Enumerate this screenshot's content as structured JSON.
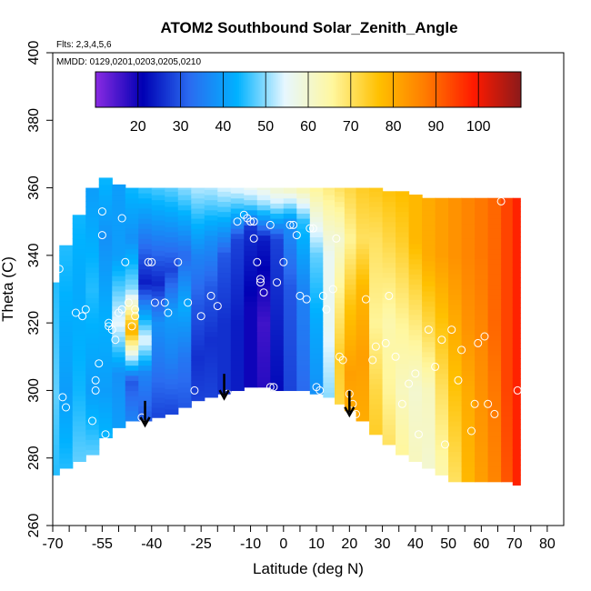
{
  "chart_data": {
    "type": "heatmap",
    "title": "ATOM2 Southbound Solar_Zenith_Angle",
    "notes": [
      "Flts: 2,3,4,5,6",
      "MMDD: 0129,0201,0203,0205,0210"
    ],
    "xlabel": "Latitude (deg N)",
    "ylabel": "Theta (C)",
    "xlim": [
      -70,
      85
    ],
    "ylim": [
      260,
      400
    ],
    "x_ticks_labeled": [
      -70,
      -55,
      -40,
      -25,
      -10,
      0,
      10,
      20,
      30,
      40,
      50,
      60,
      70,
      80
    ],
    "x_ticks_minor": [
      -65,
      -60,
      -50,
      -45,
      -35,
      -30,
      -20,
      -15,
      -5,
      5,
      15,
      25,
      35,
      45,
      55,
      65,
      75
    ],
    "y_ticks": [
      260,
      280,
      300,
      320,
      340,
      360,
      380,
      400
    ],
    "colorbar": {
      "range": [
        10,
        110
      ],
      "ticks": [
        20,
        30,
        40,
        50,
        60,
        70,
        80,
        90,
        100
      ],
      "colors": [
        "#8a2be2",
        "#0000b4",
        "#2a6cf0",
        "#00b2ff",
        "#e6f7ff",
        "#fff7a0",
        "#ffc000",
        "#ff7a00",
        "#ff1a00",
        "#8b1a1a"
      ]
    },
    "arrows_latitude": [
      -42,
      -18,
      20
    ],
    "profiles": [
      {
        "lat": -70,
        "bottom": 275,
        "top": 332,
        "stops": [
          [
            275,
            45
          ],
          [
            300,
            48
          ],
          [
            332,
            45
          ]
        ]
      },
      {
        "lat": -66,
        "bottom": 277,
        "top": 343,
        "stops": [
          [
            277,
            45
          ],
          [
            300,
            40
          ],
          [
            343,
            45
          ]
        ]
      },
      {
        "lat": -62,
        "bottom": 279,
        "top": 352,
        "stops": [
          [
            279,
            48
          ],
          [
            300,
            44
          ],
          [
            330,
            42
          ],
          [
            352,
            44
          ]
        ]
      },
      {
        "lat": -58,
        "bottom": 281,
        "top": 360,
        "stops": [
          [
            281,
            48
          ],
          [
            300,
            40
          ],
          [
            330,
            45
          ],
          [
            360,
            40
          ]
        ]
      },
      {
        "lat": -54,
        "bottom": 286,
        "top": 363,
        "stops": [
          [
            286,
            44
          ],
          [
            300,
            40
          ],
          [
            320,
            43
          ],
          [
            345,
            38
          ],
          [
            363,
            44
          ]
        ]
      },
      {
        "lat": -50,
        "bottom": 289,
        "top": 361,
        "stops": [
          [
            289,
            40
          ],
          [
            305,
            38
          ],
          [
            320,
            55
          ],
          [
            340,
            40
          ],
          [
            361,
            40
          ]
        ]
      },
      {
        "lat": -46,
        "bottom": 291,
        "top": 360,
        "stops": [
          [
            291,
            36
          ],
          [
            303,
            30
          ],
          [
            318,
            80
          ],
          [
            330,
            50
          ],
          [
            345,
            38
          ],
          [
            360,
            44
          ]
        ]
      },
      {
        "lat": -42,
        "bottom": 291,
        "top": 360,
        "stops": [
          [
            291,
            30
          ],
          [
            305,
            36
          ],
          [
            315,
            55
          ],
          [
            332,
            24
          ],
          [
            360,
            46
          ]
        ]
      },
      {
        "lat": -38,
        "bottom": 292,
        "top": 360,
        "stops": [
          [
            292,
            28
          ],
          [
            305,
            33
          ],
          [
            320,
            38
          ],
          [
            332,
            25
          ],
          [
            360,
            47
          ]
        ]
      },
      {
        "lat": -34,
        "bottom": 293,
        "top": 360,
        "stops": [
          [
            293,
            28
          ],
          [
            310,
            36
          ],
          [
            323,
            40
          ],
          [
            336,
            28
          ],
          [
            360,
            48
          ]
        ]
      },
      {
        "lat": -30,
        "bottom": 295,
        "top": 360,
        "stops": [
          [
            295,
            30
          ],
          [
            310,
            34
          ],
          [
            325,
            42
          ],
          [
            340,
            32
          ],
          [
            360,
            50
          ]
        ]
      },
      {
        "lat": -26,
        "bottom": 297,
        "top": 360,
        "stops": [
          [
            297,
            28
          ],
          [
            310,
            26
          ],
          [
            325,
            30
          ],
          [
            340,
            36
          ],
          [
            360,
            52
          ]
        ]
      },
      {
        "lat": -22,
        "bottom": 298,
        "top": 360,
        "stops": [
          [
            298,
            28
          ],
          [
            315,
            26
          ],
          [
            330,
            30
          ],
          [
            345,
            38
          ],
          [
            360,
            52
          ]
        ]
      },
      {
        "lat": -18,
        "bottom": 299,
        "top": 360,
        "stops": [
          [
            299,
            26
          ],
          [
            320,
            26
          ],
          [
            340,
            30
          ],
          [
            350,
            42
          ],
          [
            360,
            54
          ]
        ]
      },
      {
        "lat": -14,
        "bottom": 300,
        "top": 360,
        "stops": [
          [
            300,
            24
          ],
          [
            320,
            24
          ],
          [
            345,
            28
          ],
          [
            352,
            42
          ],
          [
            360,
            55
          ]
        ]
      },
      {
        "lat": -10,
        "bottom": 301,
        "top": 360,
        "stops": [
          [
            301,
            20
          ],
          [
            325,
            20
          ],
          [
            348,
            26
          ],
          [
            355,
            48
          ],
          [
            360,
            56
          ]
        ]
      },
      {
        "lat": -6,
        "bottom": 301,
        "top": 360,
        "stops": [
          [
            301,
            18
          ],
          [
            320,
            16
          ],
          [
            345,
            24
          ],
          [
            355,
            50
          ],
          [
            360,
            58
          ]
        ]
      },
      {
        "lat": -2,
        "bottom": 300,
        "top": 360,
        "stops": [
          [
            300,
            22
          ],
          [
            325,
            25
          ],
          [
            345,
            28
          ],
          [
            355,
            52
          ],
          [
            360,
            60
          ]
        ]
      },
      {
        "lat": 2,
        "bottom": 300,
        "top": 360,
        "stops": [
          [
            300,
            28
          ],
          [
            330,
            30
          ],
          [
            350,
            38
          ],
          [
            360,
            62
          ]
        ]
      },
      {
        "lat": 6,
        "bottom": 300,
        "top": 360,
        "stops": [
          [
            300,
            32
          ],
          [
            330,
            36
          ],
          [
            350,
            45
          ],
          [
            360,
            64
          ]
        ]
      },
      {
        "lat": 10,
        "bottom": 299,
        "top": 360,
        "stops": [
          [
            299,
            38
          ],
          [
            320,
            42
          ],
          [
            340,
            48
          ],
          [
            360,
            66
          ]
        ]
      },
      {
        "lat": 14,
        "bottom": 298,
        "top": 360,
        "stops": [
          [
            298,
            50
          ],
          [
            320,
            56
          ],
          [
            340,
            56
          ],
          [
            360,
            68
          ]
        ]
      },
      {
        "lat": 17,
        "bottom": 296,
        "top": 360,
        "stops": [
          [
            296,
            72
          ],
          [
            310,
            74
          ],
          [
            330,
            66
          ],
          [
            345,
            60
          ],
          [
            360,
            70
          ]
        ]
      },
      {
        "lat": 20,
        "bottom": 294,
        "top": 360,
        "stops": [
          [
            294,
            80
          ],
          [
            305,
            82
          ],
          [
            325,
            76
          ],
          [
            345,
            66
          ],
          [
            360,
            72
          ]
        ]
      },
      {
        "lat": 24,
        "bottom": 291,
        "top": 360,
        "stops": [
          [
            291,
            80
          ],
          [
            310,
            82
          ],
          [
            330,
            78
          ],
          [
            345,
            70
          ],
          [
            360,
            74
          ]
        ]
      },
      {
        "lat": 28,
        "bottom": 287,
        "top": 360,
        "stops": [
          [
            287,
            74
          ],
          [
            300,
            72
          ],
          [
            320,
            66
          ],
          [
            345,
            70
          ],
          [
            360,
            75
          ]
        ]
      },
      {
        "lat": 32,
        "bottom": 284,
        "top": 359,
        "stops": [
          [
            284,
            70
          ],
          [
            300,
            66
          ],
          [
            320,
            64
          ],
          [
            345,
            72
          ],
          [
            359,
            76
          ]
        ]
      },
      {
        "lat": 36,
        "bottom": 281,
        "top": 359,
        "stops": [
          [
            281,
            66
          ],
          [
            300,
            62
          ],
          [
            320,
            66
          ],
          [
            345,
            74
          ],
          [
            359,
            77
          ]
        ]
      },
      {
        "lat": 40,
        "bottom": 279,
        "top": 358,
        "stops": [
          [
            279,
            62
          ],
          [
            300,
            60
          ],
          [
            320,
            68
          ],
          [
            345,
            78
          ],
          [
            358,
            78
          ]
        ]
      },
      {
        "lat": 44,
        "bottom": 277,
        "top": 357,
        "stops": [
          [
            277,
            60
          ],
          [
            300,
            62
          ],
          [
            320,
            72
          ],
          [
            340,
            80
          ],
          [
            357,
            80
          ]
        ]
      },
      {
        "lat": 48,
        "bottom": 275,
        "top": 357,
        "stops": [
          [
            275,
            64
          ],
          [
            300,
            70
          ],
          [
            320,
            76
          ],
          [
            340,
            82
          ],
          [
            357,
            82
          ]
        ]
      },
      {
        "lat": 52,
        "bottom": 273,
        "top": 357,
        "stops": [
          [
            273,
            70
          ],
          [
            300,
            76
          ],
          [
            320,
            80
          ],
          [
            340,
            84
          ],
          [
            357,
            84
          ]
        ]
      },
      {
        "lat": 56,
        "bottom": 273,
        "top": 357,
        "stops": [
          [
            273,
            78
          ],
          [
            300,
            80
          ],
          [
            320,
            84
          ],
          [
            340,
            86
          ],
          [
            357,
            86
          ]
        ]
      },
      {
        "lat": 60,
        "bottom": 273,
        "top": 357,
        "stops": [
          [
            273,
            82
          ],
          [
            300,
            84
          ],
          [
            320,
            86
          ],
          [
            340,
            88
          ],
          [
            357,
            88
          ]
        ]
      },
      {
        "lat": 64,
        "bottom": 273,
        "top": 357,
        "stops": [
          [
            273,
            86
          ],
          [
            300,
            88
          ],
          [
            320,
            90
          ],
          [
            340,
            90
          ],
          [
            357,
            90
          ]
        ]
      },
      {
        "lat": 68,
        "bottom": 273,
        "top": 357,
        "stops": [
          [
            273,
            92
          ],
          [
            300,
            94
          ],
          [
            320,
            94
          ],
          [
            340,
            94
          ],
          [
            357,
            94
          ]
        ]
      },
      {
        "lat": 71,
        "bottom": 272,
        "top": 357,
        "stops": [
          [
            272,
            98
          ],
          [
            300,
            98
          ],
          [
            320,
            98
          ],
          [
            340,
            98
          ],
          [
            357,
            98
          ]
        ]
      }
    ],
    "points": [
      [
        -68,
        336
      ],
      [
        -67,
        298
      ],
      [
        -66,
        295
      ],
      [
        -63,
        323
      ],
      [
        -61,
        322
      ],
      [
        -60,
        324
      ],
      [
        -58,
        291
      ],
      [
        -57,
        300
      ],
      [
        -57,
        303
      ],
      [
        -56,
        308
      ],
      [
        -55,
        353
      ],
      [
        -55,
        346
      ],
      [
        -54,
        287
      ],
      [
        -53,
        319
      ],
      [
        -53,
        320
      ],
      [
        -52,
        318
      ],
      [
        -51,
        315
      ],
      [
        -50,
        323
      ],
      [
        -49,
        324
      ],
      [
        -49,
        351
      ],
      [
        -48,
        338
      ],
      [
        -47,
        326
      ],
      [
        -46,
        319
      ],
      [
        -45,
        324
      ],
      [
        -45,
        322
      ],
      [
        -43,
        292
      ],
      [
        -41,
        338
      ],
      [
        -40,
        338
      ],
      [
        -39,
        326
      ],
      [
        -36,
        326
      ],
      [
        -35,
        323
      ],
      [
        -32,
        338
      ],
      [
        -29,
        326
      ],
      [
        -27,
        300
      ],
      [
        -25,
        322
      ],
      [
        -22,
        328
      ],
      [
        -20,
        325
      ],
      [
        -19,
        297
      ],
      [
        -17,
        299
      ],
      [
        -14,
        350
      ],
      [
        -12,
        352
      ],
      [
        -11,
        351
      ],
      [
        -10,
        350
      ],
      [
        -9,
        350
      ],
      [
        -9,
        345
      ],
      [
        -8,
        338
      ],
      [
        -7,
        333
      ],
      [
        -7,
        332
      ],
      [
        -6,
        329
      ],
      [
        -4,
        349
      ],
      [
        -4,
        301
      ],
      [
        -3,
        301
      ],
      [
        -2,
        332
      ],
      [
        0,
        338
      ],
      [
        2,
        349
      ],
      [
        3,
        349
      ],
      [
        4,
        346
      ],
      [
        5,
        328
      ],
      [
        7,
        327
      ],
      [
        8,
        348
      ],
      [
        9,
        348
      ],
      [
        10,
        301
      ],
      [
        11,
        300
      ],
      [
        12,
        328
      ],
      [
        13,
        324
      ],
      [
        15,
        330
      ],
      [
        16,
        345
      ],
      [
        17,
        310
      ],
      [
        18,
        309
      ],
      [
        20,
        299
      ],
      [
        21,
        296
      ],
      [
        22,
        293
      ],
      [
        25,
        327
      ],
      [
        27,
        309
      ],
      [
        28,
        313
      ],
      [
        31,
        314
      ],
      [
        32,
        328
      ],
      [
        34,
        310
      ],
      [
        36,
        296
      ],
      [
        38,
        302
      ],
      [
        40,
        305
      ],
      [
        41,
        287
      ],
      [
        44,
        318
      ],
      [
        46,
        307
      ],
      [
        48,
        315
      ],
      [
        49,
        284
      ],
      [
        51,
        318
      ],
      [
        53,
        303
      ],
      [
        54,
        312
      ],
      [
        57,
        288
      ],
      [
        58,
        296
      ],
      [
        59,
        314
      ],
      [
        61,
        316
      ],
      [
        62,
        296
      ],
      [
        64,
        293
      ],
      [
        66,
        356
      ],
      [
        71,
        300
      ]
    ]
  }
}
